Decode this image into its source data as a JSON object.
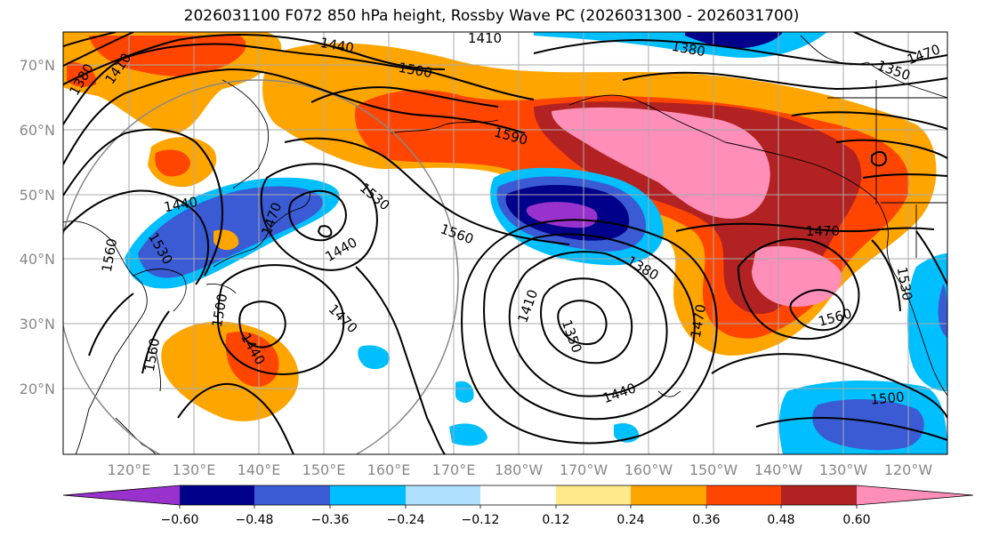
{
  "title": "2026031100 F072 850 hPa height, Rossby Wave PC (2026031300 - 2026031700)",
  "lat_labels": [
    "70°N",
    "60°N",
    "50°N",
    "40°N",
    "30°N",
    "20°N"
  ],
  "lon_labels": [
    "120°E",
    "130°E",
    "140°E",
    "150°E",
    "160°E",
    "170°E",
    "180°W",
    "170°W",
    "160°W",
    "150°W",
    "140°W",
    "130°W",
    "120°W"
  ],
  "contour_labels": [
    "1380",
    "1410",
    "1440",
    "1500",
    "1410",
    "1380",
    "1350",
    "1470",
    "1590",
    "1530",
    "1440",
    "1470",
    "1560",
    "1440",
    "1530",
    "1560",
    "1500",
    "1440",
    "1410",
    "1350",
    "1380",
    "1470",
    "1440",
    "1560",
    "1470",
    "1530",
    "1560",
    "1500"
  ],
  "colorbar": {
    "colors": [
      "#9932cc",
      "#00008b",
      "#3a5bd4",
      "#00bfff",
      "#b0e0ff",
      "#ffffff",
      "#ffe98a",
      "#ffa500",
      "#ff4500",
      "#b22222",
      "#ff8fb8"
    ],
    "tick_labels": [
      "−0.60",
      "−0.48",
      "−0.36",
      "−0.24",
      "−0.12",
      "0.12",
      "0.24",
      "0.36",
      "0.48",
      "0.60"
    ]
  },
  "colors": {
    "grid": "#aaaaaa",
    "contour": "#000000",
    "axis_label": "#888888"
  }
}
